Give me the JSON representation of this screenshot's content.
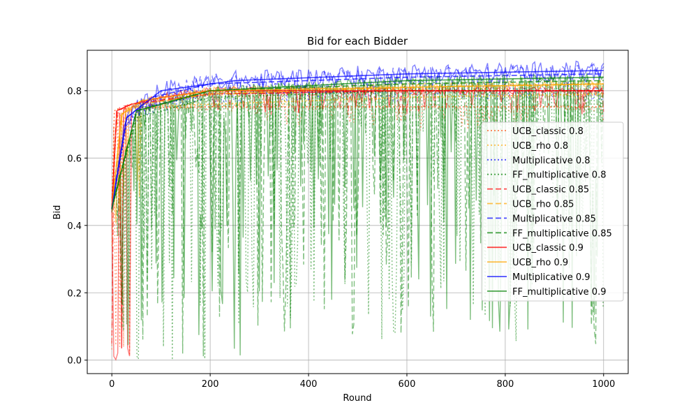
{
  "chart_data": {
    "type": "line",
    "title": "Bid for each Bidder",
    "xlabel": "Round",
    "ylabel": "Bid",
    "xlim": [
      -50,
      1050
    ],
    "ylim": [
      -0.04,
      0.92
    ],
    "xticks": [
      0,
      200,
      400,
      600,
      800,
      1000
    ],
    "yticks": [
      0.0,
      0.2,
      0.4,
      0.6,
      0.8
    ],
    "ytick_labels": [
      "0.0",
      "0.2",
      "0.4",
      "0.6",
      "0.8"
    ],
    "grid": true,
    "legend_position": "center-right",
    "series": [
      {
        "name": "UCB_classic 0.8",
        "color": "#ff4500",
        "dash": "dotted",
        "x": [
          0,
          5,
          10,
          20,
          40,
          100,
          200,
          600,
          1000
        ],
        "y": [
          0.45,
          0.74,
          0.745,
          0.745,
          0.75,
          0.75,
          0.752,
          0.752,
          0.752
        ]
      },
      {
        "name": "UCB_rho 0.8",
        "color": "#ffa500",
        "dash": "dotted",
        "x": [
          0,
          10,
          40,
          200,
          600,
          1000
        ],
        "y": [
          0.45,
          0.72,
          0.75,
          0.76,
          0.78,
          0.79
        ]
      },
      {
        "name": "Multiplicative 0.8",
        "color": "#0000ff",
        "dash": "dotted",
        "x": [
          0,
          30,
          60,
          200,
          600,
          1000
        ],
        "y": [
          0.45,
          0.7,
          0.75,
          0.79,
          0.8,
          0.8
        ]
      },
      {
        "name": "FF_multiplicative 0.8",
        "color": "#008000",
        "dash": "dotted",
        "x": [
          0,
          50,
          200,
          600,
          1000
        ],
        "y": [
          0.45,
          0.72,
          0.78,
          0.8,
          0.8
        ]
      },
      {
        "name": "UCB_classic 0.85",
        "color": "#ff0000",
        "dash": "dashed",
        "x": [
          0,
          10,
          40,
          200,
          600,
          1000
        ],
        "y": [
          0.45,
          0.74,
          0.76,
          0.79,
          0.8,
          0.8
        ]
      },
      {
        "name": "UCB_rho 0.85",
        "color": "#ffa500",
        "dash": "dashed",
        "x": [
          0,
          20,
          60,
          200,
          600,
          1000
        ],
        "y": [
          0.45,
          0.73,
          0.76,
          0.79,
          0.81,
          0.82
        ]
      },
      {
        "name": "Multiplicative 0.85",
        "color": "#0000ff",
        "dash": "dashed",
        "x": [
          0,
          30,
          80,
          200,
          600,
          1000
        ],
        "y": [
          0.45,
          0.72,
          0.78,
          0.82,
          0.84,
          0.85
        ]
      },
      {
        "name": "FF_multiplicative 0.85",
        "color": "#008000",
        "dash": "dashed",
        "x": [
          0,
          50,
          200,
          600,
          1000
        ],
        "y": [
          0.45,
          0.74,
          0.8,
          0.82,
          0.83
        ]
      },
      {
        "name": "UCB_classic 0.9",
        "color": "#ff0000",
        "dash": "solid",
        "x": [
          0,
          10,
          40,
          100,
          200,
          600,
          1000
        ],
        "y": [
          0.45,
          0.74,
          0.76,
          0.78,
          0.8,
          0.8,
          0.8
        ]
      },
      {
        "name": "UCB_rho 0.9",
        "color": "#ffa500",
        "dash": "solid",
        "x": [
          0,
          20,
          60,
          200,
          600,
          1000
        ],
        "y": [
          0.45,
          0.73,
          0.77,
          0.8,
          0.81,
          0.82
        ]
      },
      {
        "name": "Multiplicative 0.9",
        "color": "#0000ff",
        "dash": "solid",
        "x": [
          0,
          30,
          100,
          250,
          600,
          1000
        ],
        "y": [
          0.45,
          0.72,
          0.8,
          0.83,
          0.85,
          0.86
        ]
      },
      {
        "name": "FF_multiplicative 0.9",
        "color": "#008000",
        "dash": "solid",
        "x": [
          0,
          50,
          200,
          600,
          1000
        ],
        "y": [
          0.45,
          0.74,
          0.8,
          0.83,
          0.84
        ]
      }
    ]
  }
}
